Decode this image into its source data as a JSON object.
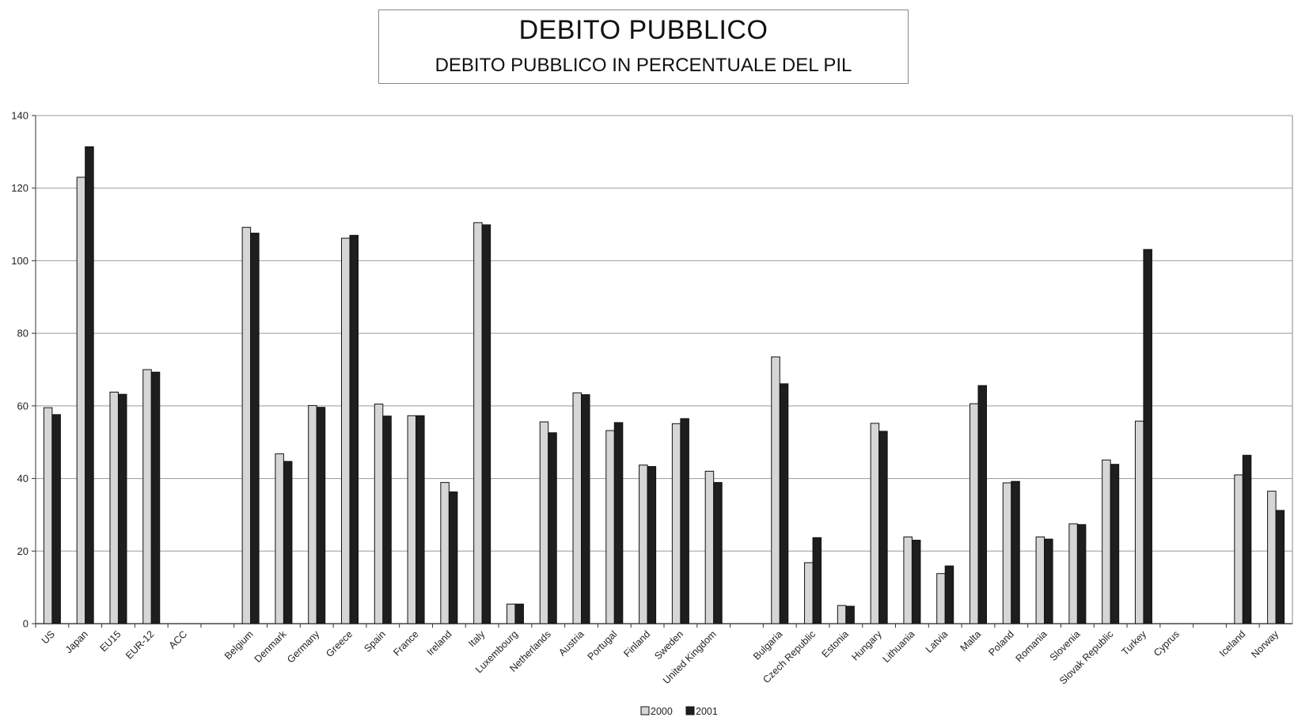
{
  "chart_data": {
    "type": "bar",
    "title": "DEBITO PUBBLICO",
    "subtitle": "DEBITO PUBBLICO IN PERCENTUALE DEL PIL",
    "xlabel": "",
    "ylabel": "",
    "ylim": [
      0,
      140
    ],
    "yticks": [
      0,
      20,
      40,
      60,
      80,
      100,
      120,
      140
    ],
    "grid": true,
    "legend_position": "bottom-center",
    "categories": [
      "US",
      "Japan",
      "EU15",
      "EUR-12",
      "ACC",
      "",
      "Belgium",
      "Denmark",
      "Germany",
      "Greece",
      "Spain",
      "France",
      "Ireland",
      "Italy",
      "Luxembourg",
      "Netherlands",
      "Austria",
      "Portugal",
      "Finland",
      "Sweden",
      "United Kingdom",
      "",
      "Bulgaria",
      "Czech Republic",
      "Estonia",
      "Hungary",
      "Lithuania",
      "Latvia",
      "Malta",
      "Poland",
      "Romania",
      "Slovenia",
      "Slovak Republic",
      "Turkey",
      "Cyprus",
      "",
      "Iceland",
      "Norway"
    ],
    "series": [
      {
        "name": "2000",
        "color": "#d6d6d6",
        "values": [
          59.5,
          123,
          63.8,
          70,
          null,
          null,
          109.2,
          46.8,
          60.1,
          106.2,
          60.5,
          57.3,
          38.9,
          110.5,
          5.4,
          55.6,
          63.6,
          53.2,
          43.7,
          55.1,
          42,
          null,
          73.5,
          16.8,
          5,
          55.2,
          23.9,
          13.8,
          60.6,
          38.8,
          23.9,
          27.5,
          45.1,
          55.8,
          null,
          null,
          41,
          36.5
        ]
      },
      {
        "name": "2001",
        "color": "#1e1e1e",
        "values": [
          57.6,
          131.4,
          63.2,
          69.3,
          null,
          null,
          107.6,
          44.7,
          59.6,
          107,
          57.2,
          57.3,
          36.3,
          109.9,
          5.4,
          52.6,
          63.1,
          55.4,
          43.3,
          56.5,
          38.9,
          null,
          66.1,
          23.7,
          4.8,
          53,
          23,
          15.9,
          65.6,
          39.2,
          23.3,
          27.3,
          43.9,
          103.1,
          null,
          null,
          46.4,
          31.2
        ]
      }
    ]
  }
}
